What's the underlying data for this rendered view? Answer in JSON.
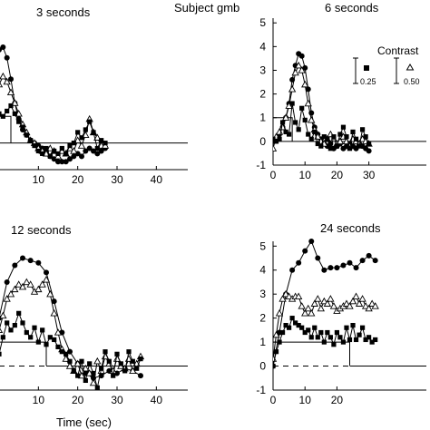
{
  "figure": {
    "subject_label": "Subject gmb",
    "xlabel": "Time (sec)",
    "legend_title": "Contrast",
    "legend_items": [
      {
        "label": "0.25",
        "marker": "square"
      },
      {
        "label": "0.50",
        "marker": "triangle"
      }
    ]
  },
  "chart_data": [
    {
      "type": "line",
      "title": "3 seconds",
      "xlim": [
        0,
        48
      ],
      "ylim": [
        -1,
        5.2
      ],
      "xticks": [
        10,
        20,
        30,
        40
      ],
      "yticks": [],
      "stimulus": {
        "start": 0,
        "end": 3,
        "height": 1
      },
      "series": [
        {
          "marker": "circle",
          "x": [
            -1,
            0,
            1,
            2,
            3,
            4,
            5,
            6,
            7,
            8,
            9,
            10,
            11,
            12,
            13,
            14,
            15,
            16,
            17,
            18,
            19,
            20,
            21,
            22,
            23,
            24,
            25,
            26,
            27
          ],
          "y": [
            3.2,
            3.5,
            3.6,
            3.2,
            2.4,
            1.5,
            0.9,
            0.5,
            0.3,
            0.1,
            0.0,
            -0.1,
            -0.2,
            -0.3,
            -0.5,
            -0.6,
            -0.7,
            -0.7,
            -0.7,
            -0.6,
            -0.5,
            -0.4,
            -0.5,
            -0.3,
            -0.2,
            -0.3,
            -0.4,
            -0.3,
            -0.2
          ]
        },
        {
          "marker": "triangle",
          "x": [
            -1,
            0,
            1,
            2,
            3,
            4,
            5,
            6,
            7,
            8,
            9,
            10,
            11,
            12,
            13,
            14,
            15,
            16,
            17,
            18,
            19,
            20,
            21,
            22,
            23,
            24,
            25,
            26,
            27
          ],
          "y": [
            1.8,
            2.2,
            2.5,
            2.3,
            1.9,
            1.5,
            1.1,
            0.7,
            0.4,
            0.1,
            0.0,
            -0.2,
            -0.3,
            -0.4,
            -0.2,
            -0.3,
            -0.5,
            -0.3,
            -0.4,
            -0.2,
            -0.3,
            0.1,
            -0.1,
            0.3,
            0.9,
            0.4,
            0.2,
            -0.1,
            -0.1
          ]
        },
        {
          "marker": "square",
          "x": [
            -1,
            0,
            1,
            2,
            3,
            4,
            5,
            6,
            7,
            8,
            9,
            10,
            11,
            12,
            13,
            14,
            15,
            16,
            17,
            18,
            19,
            20,
            21,
            22,
            23,
            24,
            25,
            26,
            27
          ],
          "y": [
            0.9,
            1.1,
            1.0,
            1.2,
            1.4,
            1.1,
            0.8,
            0.6,
            0.3,
            0.1,
            -0.1,
            -0.3,
            -0.4,
            -0.2,
            -0.5,
            -0.3,
            -0.4,
            -0.2,
            -0.4,
            -0.1,
            0.0,
            0.4,
            0.2,
            0.5,
            0.8,
            0.4,
            -0.2,
            0.1,
            0.0
          ]
        }
      ]
    },
    {
      "type": "line",
      "title": "6 seconds",
      "xlim": [
        0,
        48
      ],
      "ylim": [
        -1,
        5.2
      ],
      "xticks": [
        0,
        10,
        20,
        30
      ],
      "yticks": [
        -1,
        0,
        1,
        2,
        3,
        4,
        5
      ],
      "stimulus": {
        "start": 0,
        "end": 6,
        "height": 1
      },
      "series": [
        {
          "marker": "circle",
          "x": [
            0,
            1,
            2,
            3,
            4,
            5,
            6,
            7,
            8,
            9,
            10,
            11,
            12,
            13,
            14,
            15,
            16,
            17,
            18,
            19,
            20,
            21,
            22,
            23,
            24,
            25,
            26,
            27,
            28,
            29,
            30
          ],
          "y": [
            0.0,
            0.1,
            0.3,
            0.6,
            1.0,
            1.6,
            2.6,
            3.2,
            3.7,
            3.6,
            3.1,
            2.2,
            1.2,
            0.6,
            0.3,
            0.1,
            -0.1,
            -0.2,
            -0.1,
            -0.3,
            -0.2,
            -0.1,
            -0.3,
            -0.2,
            -0.1,
            -0.2,
            -0.3,
            -0.1,
            -0.2,
            -0.3,
            -0.4
          ]
        },
        {
          "marker": "triangle",
          "x": [
            0,
            1,
            2,
            3,
            4,
            5,
            6,
            7,
            8,
            9,
            10,
            11,
            12,
            13,
            14,
            15,
            16,
            17,
            18,
            19,
            20,
            21,
            22,
            23,
            24,
            25,
            26,
            27,
            28,
            29,
            30
          ],
          "y": [
            -0.3,
            0.2,
            0.4,
            0.6,
            1.0,
            1.5,
            2.2,
            2.9,
            3.2,
            3.0,
            2.4,
            1.6,
            0.9,
            0.5,
            0.2,
            0.0,
            -0.1,
            0.1,
            0.3,
            0.1,
            -0.1,
            0.0,
            0.2,
            0.0,
            -0.2,
            0.1,
            0.0,
            -0.1,
            0.1,
            0.0,
            -0.1
          ]
        },
        {
          "marker": "square",
          "x": [
            0,
            1,
            2,
            3,
            4,
            5,
            6,
            7,
            8,
            9,
            10,
            11,
            12,
            13,
            14,
            15,
            16,
            17,
            18,
            19,
            20,
            21,
            22,
            23,
            24,
            25,
            26,
            27,
            28,
            29,
            30
          ],
          "y": [
            0.1,
            0.0,
            0.1,
            0.8,
            0.4,
            0.3,
            1.6,
            0.8,
            0.5,
            1.4,
            0.9,
            0.3,
            0.1,
            0.4,
            -0.1,
            -0.2,
            0.2,
            0.1,
            -0.3,
            0.2,
            -0.2,
            0.3,
            0.6,
            0.2,
            -0.3,
            0.4,
            0.1,
            -0.2,
            0.5,
            0.2,
            -0.1
          ]
        }
      ]
    },
    {
      "type": "line",
      "title": "12 seconds",
      "xlim": [
        0,
        48
      ],
      "ylim": [
        -1,
        5.2
      ],
      "xticks": [
        10,
        20,
        30,
        40
      ],
      "yticks": [],
      "stimulus": {
        "start": 0,
        "end": 12,
        "height": 1
      },
      "series": [
        {
          "marker": "circle",
          "x": [
            0,
            2,
            4,
            6,
            8,
            10,
            12,
            14,
            16,
            18,
            20,
            22,
            24,
            26,
            28,
            30,
            32,
            34,
            36
          ],
          "y": [
            2.0,
            3.5,
            4.2,
            4.5,
            4.4,
            4.3,
            3.9,
            2.7,
            1.4,
            0.6,
            0.1,
            -0.3,
            -0.5,
            -0.4,
            -0.2,
            -0.3,
            -0.1,
            -0.2,
            -0.4
          ]
        },
        {
          "marker": "triangle",
          "x": [
            0,
            1,
            2,
            3,
            4,
            5,
            6,
            7,
            8,
            9,
            10,
            11,
            12,
            13,
            14,
            15,
            16,
            17,
            18,
            19,
            20,
            21,
            22,
            23,
            24,
            25,
            26,
            27,
            28,
            29,
            30,
            31,
            32,
            33,
            34,
            35,
            36
          ],
          "y": [
            1.5,
            2.1,
            2.8,
            3.0,
            3.2,
            3.4,
            3.3,
            3.5,
            3.4,
            3.1,
            3.2,
            3.4,
            3.6,
            3.0,
            2.2,
            1.4,
            0.7,
            0.3,
            0.0,
            -0.2,
            0.1,
            -0.4,
            -0.1,
            -0.3,
            -0.7,
            0.2,
            -0.2,
            0.4,
            0.1,
            -0.2,
            0.3,
            0.0,
            -0.1,
            0.3,
            -0.2,
            0.1,
            0.4
          ]
        },
        {
          "marker": "square",
          "x": [
            0,
            1,
            2,
            3,
            4,
            5,
            6,
            7,
            8,
            9,
            10,
            11,
            12,
            13,
            14,
            15,
            16,
            17,
            18,
            19,
            20,
            21,
            22,
            23,
            24,
            25,
            26,
            27,
            28,
            29,
            30,
            31,
            32,
            33,
            34,
            35,
            36
          ],
          "y": [
            0.5,
            1.2,
            1.8,
            1.5,
            1.7,
            2.2,
            1.8,
            1.4,
            1.2,
            1.6,
            1.0,
            1.5,
            0.9,
            1.2,
            1.1,
            0.8,
            0.6,
            0.5,
            0.2,
            -0.2,
            -0.4,
            0.2,
            -0.6,
            0.1,
            -0.3,
            -0.9,
            -0.1,
            0.6,
            0.2,
            -0.4,
            0.5,
            0.1,
            -0.2,
            0.6,
            0.2,
            -0.1,
            0.3
          ]
        }
      ]
    },
    {
      "type": "line",
      "title": "24 seconds",
      "xlim": [
        0,
        48
      ],
      "ylim": [
        -1,
        5.2
      ],
      "xticks": [
        0,
        10,
        20
      ],
      "yticks": [
        -1,
        0,
        1,
        2,
        3,
        4,
        5
      ],
      "stimulus": {
        "start": 0,
        "end": 24,
        "height": 1
      },
      "series": [
        {
          "marker": "circle",
          "x": [
            0,
            2,
            4,
            6,
            8,
            10,
            12,
            14,
            16,
            18,
            20,
            22,
            24,
            26,
            28,
            30,
            32
          ],
          "y": [
            0.0,
            1.4,
            3.0,
            4.0,
            4.3,
            4.8,
            5.2,
            4.5,
            4.0,
            4.1,
            4.1,
            4.2,
            4.3,
            4.1,
            4.4,
            4.6,
            4.4
          ]
        },
        {
          "marker": "triangle",
          "x": [
            0,
            1,
            2,
            3,
            4,
            5,
            6,
            7,
            8,
            9,
            10,
            11,
            12,
            13,
            14,
            15,
            16,
            17,
            18,
            19,
            20,
            21,
            22,
            23,
            24,
            25,
            26,
            27,
            28,
            29,
            30,
            31,
            32
          ],
          "y": [
            0.3,
            1.3,
            2.2,
            2.8,
            3.0,
            2.9,
            2.8,
            2.9,
            2.9,
            2.5,
            2.2,
            2.4,
            2.2,
            2.6,
            2.8,
            2.4,
            2.7,
            2.6,
            2.8,
            2.5,
            2.3,
            2.4,
            2.5,
            2.6,
            2.5,
            2.7,
            2.9,
            2.6,
            2.8,
            2.5,
            2.4,
            2.6,
            2.5
          ]
        },
        {
          "marker": "square",
          "x": [
            0,
            1,
            2,
            3,
            4,
            5,
            6,
            7,
            8,
            9,
            10,
            11,
            12,
            13,
            14,
            15,
            16,
            17,
            18,
            19,
            20,
            21,
            22,
            23,
            24,
            25,
            26,
            27,
            28,
            29,
            30,
            31,
            32
          ],
          "y": [
            0.0,
            0.6,
            1.0,
            1.4,
            1.7,
            1.6,
            2.0,
            1.8,
            1.7,
            1.6,
            1.4,
            1.5,
            1.2,
            1.6,
            1.2,
            1.4,
            1.0,
            1.4,
            1.2,
            0.9,
            1.4,
            1.2,
            1.0,
            1.6,
            1.1,
            1.7,
            1.1,
            1.3,
            1.6,
            1.1,
            1.2,
            1.0,
            1.1
          ]
        }
      ]
    }
  ]
}
